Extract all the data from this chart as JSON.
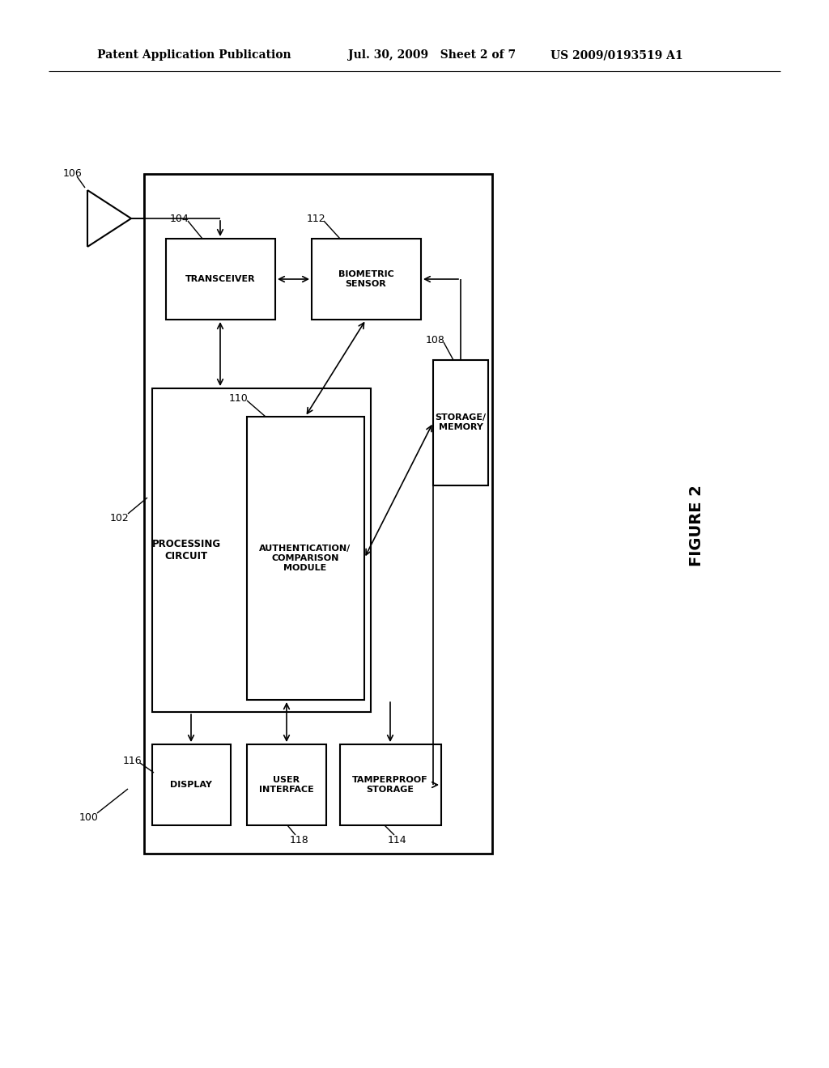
{
  "bg_color": "#ffffff",
  "header_left": "Patent Application Publication",
  "header_mid": "Jul. 30, 2009   Sheet 2 of 7",
  "header_right": "US 2009/0193519 A1",
  "figure_label": "FIGURE 2"
}
